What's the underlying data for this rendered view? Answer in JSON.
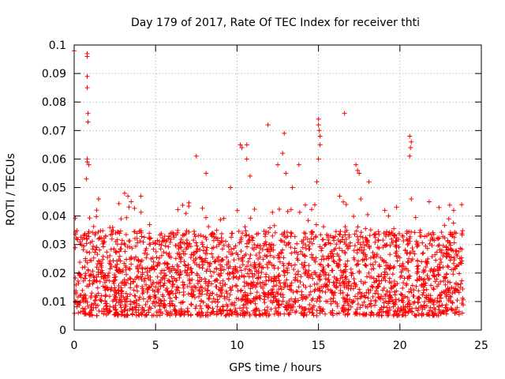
{
  "chart_data": {
    "type": "scatter",
    "title": "Day 179 of 2017, Rate Of TEC Index for receiver thti",
    "xlabel": "GPS time / hours",
    "ylabel": "ROTI / TECUs",
    "xlim": [
      0,
      25
    ],
    "ylim": [
      0,
      0.1
    ],
    "x_ticks": [
      0,
      5,
      10,
      15,
      20,
      25
    ],
    "x_tick_labels": [
      "0",
      "5",
      "10",
      "15",
      "20",
      "25"
    ],
    "y_ticks": [
      0,
      0.01,
      0.02,
      0.03,
      0.04,
      0.05,
      0.06,
      0.07,
      0.08,
      0.09,
      0.1
    ],
    "y_tick_labels": [
      "0",
      "0.01",
      "0.02",
      "0.03",
      "0.04",
      "0.05",
      "0.06",
      "0.07",
      "0.08",
      "0.09",
      "0.1"
    ],
    "grid": true,
    "marker": "+",
    "series_color": "#ff0000",
    "data_range_x": [
      0,
      23.9
    ],
    "dense_band": [
      0.005,
      0.035
    ],
    "outliers": [
      [
        0.0,
        0.098
      ],
      [
        0.8,
        0.097
      ],
      [
        0.8,
        0.096
      ],
      [
        0.8,
        0.089
      ],
      [
        0.8,
        0.085
      ],
      [
        0.85,
        0.076
      ],
      [
        0.85,
        0.073
      ],
      [
        0.8,
        0.06
      ],
      [
        0.8,
        0.059
      ],
      [
        0.9,
        0.058
      ],
      [
        0.75,
        0.053
      ],
      [
        1.5,
        0.046
      ],
      [
        3.1,
        0.048
      ],
      [
        3.3,
        0.047
      ],
      [
        3.5,
        0.045
      ],
      [
        4.1,
        0.047
      ],
      [
        7.5,
        0.061
      ],
      [
        8.1,
        0.055
      ],
      [
        9.6,
        0.05
      ],
      [
        10.2,
        0.065
      ],
      [
        10.3,
        0.064
      ],
      [
        10.6,
        0.065
      ],
      [
        10.6,
        0.06
      ],
      [
        10.8,
        0.054
      ],
      [
        11.9,
        0.072
      ],
      [
        12.5,
        0.058
      ],
      [
        12.9,
        0.069
      ],
      [
        12.8,
        0.062
      ],
      [
        13.0,
        0.055
      ],
      [
        13.4,
        0.05
      ],
      [
        13.8,
        0.058
      ],
      [
        15.0,
        0.074
      ],
      [
        15.0,
        0.072
      ],
      [
        15.05,
        0.07
      ],
      [
        15.1,
        0.068
      ],
      [
        15.1,
        0.065
      ],
      [
        15.0,
        0.06
      ],
      [
        14.9,
        0.052
      ],
      [
        16.6,
        0.076
      ],
      [
        16.3,
        0.047
      ],
      [
        17.3,
        0.058
      ],
      [
        17.4,
        0.056
      ],
      [
        17.5,
        0.055
      ],
      [
        17.6,
        0.046
      ],
      [
        18.1,
        0.052
      ],
      [
        19.3,
        0.04
      ],
      [
        20.6,
        0.068
      ],
      [
        20.7,
        0.066
      ],
      [
        20.65,
        0.064
      ],
      [
        20.6,
        0.061
      ],
      [
        20.7,
        0.046
      ],
      [
        22.4,
        0.043
      ],
      [
        23.3,
        0.042
      ],
      [
        21.8,
        0.045
      ],
      [
        23.0,
        0.039
      ]
    ]
  }
}
